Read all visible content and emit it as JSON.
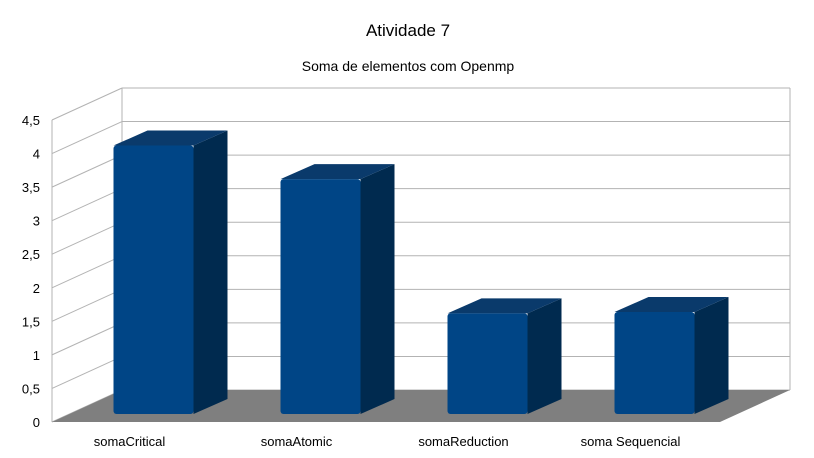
{
  "chart_data": {
    "type": "bar",
    "style": "3d",
    "title": "Atividade 7",
    "subtitle": "Soma de elementos com Openmp",
    "xlabel": "",
    "ylabel": "",
    "categories": [
      "somaCritical",
      "somaAtomic",
      "somaReduction",
      "soma Sequencial"
    ],
    "values": [
      4.0,
      3.5,
      1.5,
      1.52
    ],
    "ylim": [
      0,
      4.5
    ],
    "yticks": [
      "0",
      "0,5",
      "1",
      "1,5",
      "2",
      "2,5",
      "3",
      "3,5",
      "4",
      "4,5"
    ],
    "grid": true,
    "legend": "none",
    "colors": {
      "bar_front": "#004586",
      "bar_side": "#002a4f",
      "bar_top": "#0a3a6b",
      "floor": "#7f7f7f",
      "grid": "#b3b3b3"
    }
  }
}
